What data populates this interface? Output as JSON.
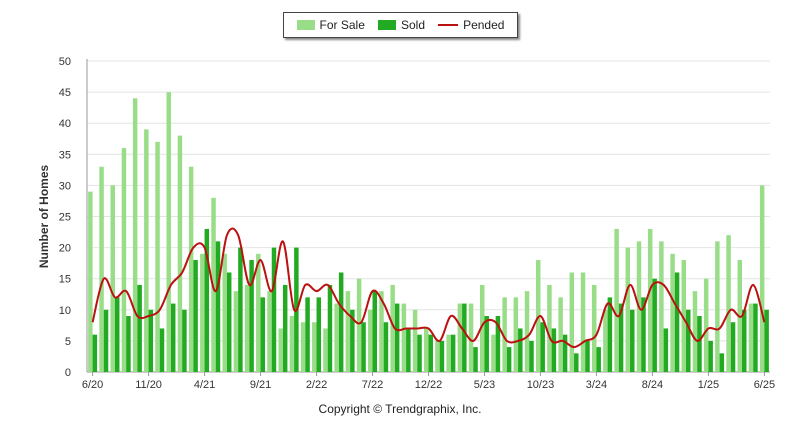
{
  "chart_data": {
    "type": "bar",
    "ylabel": "Number of Homes",
    "xlabel": "",
    "ylim": [
      0,
      50
    ],
    "yticks": [
      0,
      5,
      10,
      15,
      20,
      25,
      30,
      35,
      40,
      45,
      50
    ],
    "grid": "horizontal",
    "legend_position": "top-center",
    "x": [
      "6/20",
      "7/20",
      "8/20",
      "9/20",
      "10/20",
      "11/20",
      "12/20",
      "1/21",
      "2/21",
      "3/21",
      "4/21",
      "5/21",
      "6/21",
      "7/21",
      "8/21",
      "9/21",
      "10/21",
      "11/21",
      "12/21",
      "1/22",
      "2/22",
      "3/22",
      "4/22",
      "5/22",
      "6/22",
      "7/22",
      "8/22",
      "9/22",
      "10/22",
      "11/22",
      "12/22",
      "1/23",
      "2/23",
      "3/23",
      "4/23",
      "5/23",
      "6/23",
      "7/23",
      "8/23",
      "9/23",
      "10/23",
      "11/23",
      "12/23",
      "1/24",
      "2/24",
      "3/24",
      "4/24",
      "5/24",
      "6/24",
      "7/24",
      "8/24",
      "9/24",
      "10/24",
      "11/24",
      "12/24",
      "1/25",
      "2/25",
      "3/25",
      "4/25",
      "5/25",
      "6/25"
    ],
    "x_tick_labels": [
      "6/20",
      "11/20",
      "4/21",
      "9/21",
      "2/22",
      "7/22",
      "12/22",
      "5/23",
      "10/23",
      "3/24",
      "8/24",
      "1/25",
      "6/25"
    ],
    "series": [
      {
        "name": "For Sale",
        "kind": "bar",
        "color": "#99dd88",
        "values": [
          29,
          33,
          30,
          36,
          44,
          39,
          37,
          45,
          38,
          33,
          19,
          28,
          19,
          13,
          14,
          19,
          13,
          7,
          9,
          8,
          8,
          7,
          11,
          13,
          15,
          10,
          13,
          14,
          11,
          10,
          7,
          5,
          6,
          11,
          11,
          14,
          6,
          12,
          12,
          13,
          18,
          14,
          12,
          16,
          16,
          14,
          10,
          23,
          20,
          21,
          23,
          21,
          19,
          18,
          13,
          15,
          21,
          22,
          18,
          11,
          30
        ]
      },
      {
        "name": "Sold",
        "kind": "bar",
        "color": "#22aa22",
        "values": [
          6,
          10,
          12,
          9,
          14,
          10,
          7,
          11,
          10,
          18,
          23,
          21,
          16,
          20,
          18,
          12,
          20,
          14,
          20,
          12,
          12,
          14,
          16,
          10,
          8,
          13,
          8,
          11,
          7,
          6,
          6,
          5,
          6,
          11,
          4,
          9,
          9,
          4,
          7,
          5,
          8,
          7,
          6,
          3,
          5,
          4,
          12,
          11,
          10,
          12,
          15,
          7,
          16,
          10,
          9,
          5,
          3,
          8,
          10,
          11,
          10
        ]
      },
      {
        "name": "Pended",
        "kind": "line",
        "color": "#bb1111",
        "values": [
          8,
          15,
          12,
          13,
          9,
          9,
          10,
          14,
          16,
          20,
          20,
          13,
          22,
          22,
          14,
          18,
          13,
          21,
          10,
          14,
          13,
          14,
          11,
          9,
          8,
          13,
          11,
          7,
          7,
          7,
          7,
          5,
          9,
          7,
          5,
          8,
          8,
          5,
          5,
          6,
          9,
          5,
          5,
          4,
          5,
          6,
          11,
          9,
          14,
          10,
          14,
          14,
          11,
          8,
          5,
          7,
          7,
          10,
          9,
          14,
          8
        ]
      }
    ]
  },
  "footer": {
    "copyright": "Copyright © Trendgraphix, Inc."
  }
}
